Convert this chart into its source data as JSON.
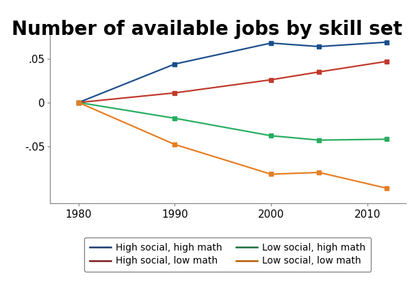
{
  "title": "Number of available jobs by skill set",
  "x": [
    1980,
    1990,
    2000,
    2005,
    2012
  ],
  "series": {
    "High social, high math": {
      "y": [
        0.0,
        0.044,
        0.068,
        0.064,
        0.069
      ],
      "color": "#1a4e8c",
      "marker": "s",
      "legend_color": "#1a3a6e"
    },
    "High social, low math": {
      "y": [
        0.0,
        0.011,
        0.026,
        0.035,
        0.047
      ],
      "color": "#c0392b",
      "marker": "s",
      "legend_color": "#7b1a1a"
    },
    "Low social, high math": {
      "y": [
        0.0,
        -0.018,
        -0.038,
        -0.043,
        -0.042
      ],
      "color": "#27ae60",
      "marker": "s",
      "legend_color": "#1a6e3a"
    },
    "Low social, low math": {
      "y": [
        0.0,
        -0.048,
        -0.082,
        -0.08,
        -0.098
      ],
      "color": "#e67e22",
      "marker": "s",
      "legend_color": "#b85c00"
    }
  },
  "ylim": [
    -0.115,
    0.085
  ],
  "yticks": [
    -0.05,
    0.0,
    0.05
  ],
  "ytick_labels": [
    "-.05",
    "0",
    ".05"
  ],
  "xticks": [
    1980,
    1990,
    2000,
    2010
  ],
  "xlim": [
    1977,
    2014
  ],
  "title_fontsize": 20,
  "tick_fontsize": 11,
  "legend_fontsize": 10,
  "linewidth": 1.6,
  "markersize": 5,
  "background_color": "#ffffff"
}
